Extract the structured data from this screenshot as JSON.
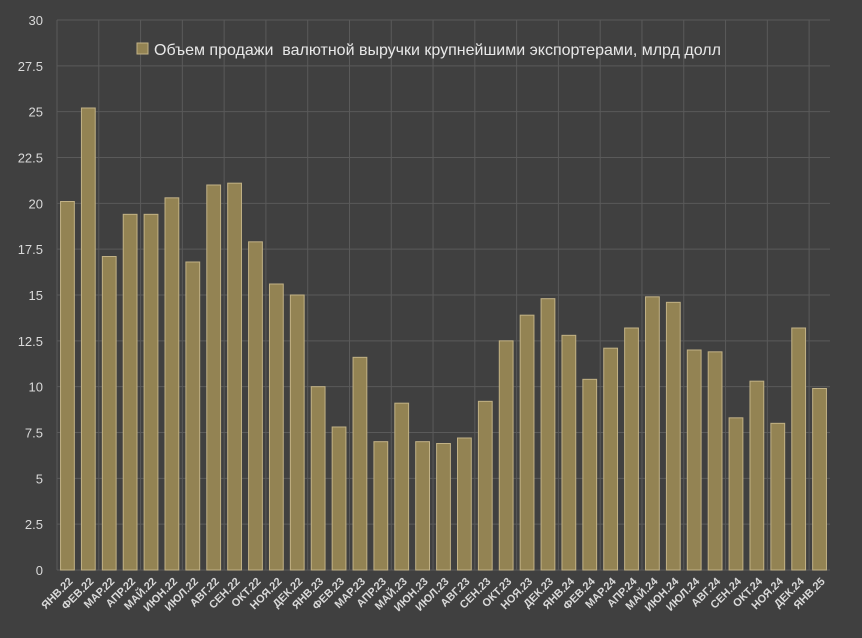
{
  "chart_data": {
    "type": "bar",
    "title": "",
    "xlabel": "",
    "ylabel": "",
    "ylim": [
      0,
      30
    ],
    "y_ticks": [
      "0",
      "2.5",
      "5",
      "7.5",
      "10",
      "12.5",
      "15",
      "17.5",
      "20",
      "22.5",
      "25",
      "27.5",
      "30"
    ],
    "grid": true,
    "legend_position": "top-center",
    "colors": {
      "background": "#404040",
      "bar_fill": "#938353",
      "bar_stroke": "#c2b286",
      "grid": "#5a5a5a",
      "text": "#d9d9d9"
    },
    "categories": [
      "ЯНВ.22",
      "ФЕВ.22",
      "МАР.22",
      "АПР.22",
      "МАЙ.22",
      "ИЮН.22",
      "ИЮЛ.22",
      "АВГ.22",
      "СЕН.22",
      "ОКТ.22",
      "НОЯ.22",
      "ДЕК.22",
      "ЯНВ.23",
      "ФЕВ.23",
      "МАР.23",
      "АПР.23",
      "МАЙ.23",
      "ИЮН.23",
      "ИЮЛ.23",
      "АВГ.23",
      "СЕН.23",
      "ОКТ.23",
      "НОЯ.23",
      "ДЕК.23",
      "ЯНВ.24",
      "ФЕВ.24",
      "МАР.24",
      "АПР.24",
      "МАЙ.24",
      "ИЮН.24",
      "ИЮЛ.24",
      "АВГ.24",
      "СЕН.24",
      "ОКТ.24",
      "НОЯ.24",
      "ДЕК.24",
      "ЯНВ.25"
    ],
    "series": [
      {
        "name": "Объем продажи  валютной выручки крупнейшими экспортерами, млрд долл",
        "values": [
          20.1,
          25.2,
          17.1,
          19.4,
          19.4,
          20.3,
          16.8,
          21.0,
          21.1,
          17.9,
          15.6,
          15.0,
          10.0,
          7.8,
          11.6,
          7.0,
          9.1,
          7.0,
          6.9,
          7.2,
          9.2,
          12.5,
          13.9,
          14.8,
          12.8,
          10.4,
          12.1,
          13.2,
          14.9,
          14.6,
          12.0,
          11.9,
          8.3,
          10.3,
          8.0,
          13.2,
          9.9
        ]
      }
    ]
  }
}
